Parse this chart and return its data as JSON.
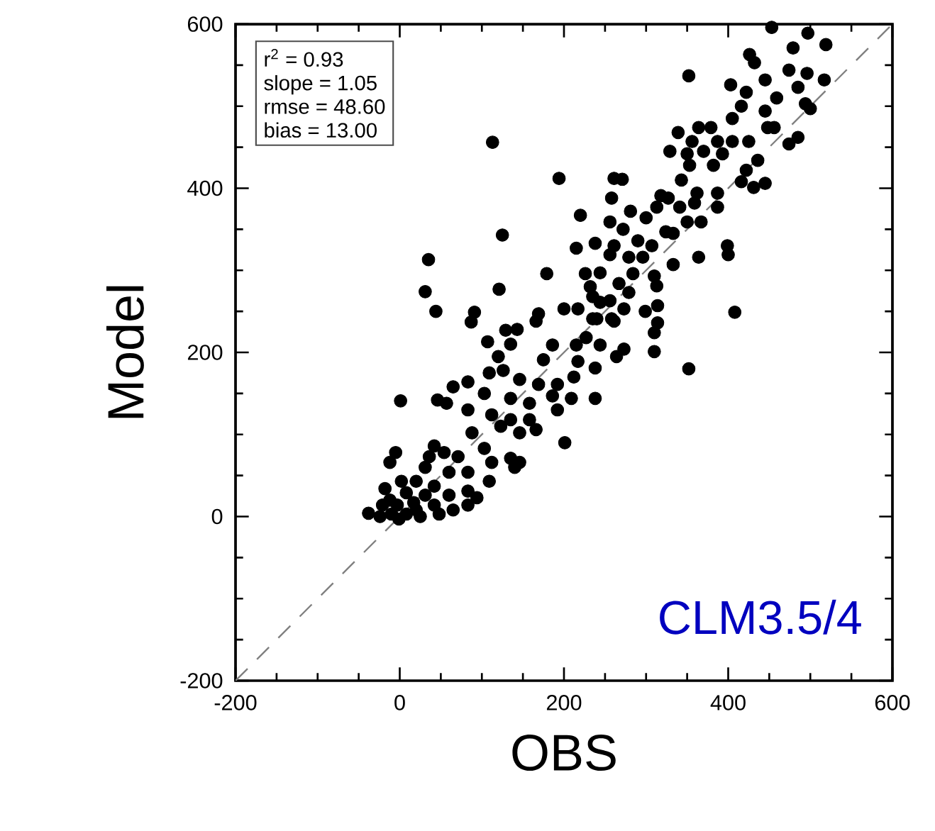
{
  "chart_data": {
    "type": "scatter",
    "xlabel": "OBS",
    "ylabel": "Model",
    "xlim": [
      -200,
      600
    ],
    "ylim": [
      -200,
      600
    ],
    "xticks": [
      -200,
      0,
      200,
      400,
      600
    ],
    "yticks": [
      -200,
      0,
      200,
      400,
      600
    ],
    "grid": false,
    "annotations": [
      "r$^{2}$ = 0.93",
      "slope =  1.05",
      "rmse = 48.60",
      "bias = 13.00",
      "CLM3.5/4"
    ],
    "series": [
      {
        "marker": "circle",
        "color": "#000000",
        "x": [
          453,
          497,
          519,
          426,
          479,
          432,
          474,
          496,
          352,
          403,
          445,
          517,
          485,
          422,
          459,
          494,
          416,
          445,
          500,
          405,
          485,
          474,
          339,
          364,
          379,
          448,
          456,
          356,
          387,
          405,
          425,
          329,
          350,
          370,
          393,
          436,
          353,
          382,
          422,
          343,
          416,
          431,
          445,
          113,
          194,
          261,
          271,
          258,
          318,
          327,
          362,
          387,
          281,
          313,
          341,
          359,
          387,
          220,
          256,
          300,
          350,
          367,
          272,
          324,
          290,
          307,
          333,
          238,
          261,
          215,
          256,
          279,
          296,
          333,
          364,
          399,
          400,
          125,
          35,
          31,
          121,
          179,
          226,
          244,
          284,
          310,
          232,
          267,
          313,
          235,
          279,
          44,
          169,
          200,
          217,
          256,
          273,
          299,
          408,
          240,
          258,
          91,
          87,
          166,
          244,
          314,
          314,
          235,
          261,
          310,
          273,
          264,
          310,
          352,
          107,
          129,
          143,
          135,
          186,
          215,
          227,
          244,
          175,
          217,
          238,
          120,
          126,
          109,
          146,
          212,
          83,
          65,
          169,
          192,
          186,
          209,
          238,
          1,
          46,
          57,
          103,
          135,
          158,
          192,
          83,
          112,
          135,
          158,
          166,
          88,
          123,
          146,
          201,
          -5,
          -12,
          42,
          54,
          36,
          71,
          103,
          112,
          135,
          146,
          140,
          31,
          60,
          83,
          109,
          -18,
          2,
          20,
          42,
          8,
          31,
          60,
          83,
          94,
          -38,
          -21,
          -3,
          17,
          42,
          65,
          83,
          -24,
          -10,
          8,
          25,
          48,
          -12,
          20,
          -1
        ],
        "values": [
          596,
          589,
          575,
          563,
          571,
          553,
          544,
          540,
          537,
          526,
          532,
          532,
          523,
          517,
          510,
          503,
          500,
          494,
          497,
          485,
          462,
          454,
          468,
          474,
          474,
          474,
          474,
          457,
          457,
          457,
          457,
          445,
          442,
          445,
          442,
          434,
          428,
          428,
          422,
          410,
          408,
          401,
          406,
          456,
          412,
          412,
          411,
          388,
          391,
          388,
          394,
          394,
          372,
          377,
          377,
          382,
          377,
          367,
          359,
          364,
          359,
          359,
          350,
          347,
          336,
          330,
          345,
          333,
          330,
          327,
          319,
          316,
          316,
          307,
          316,
          330,
          319,
          343,
          313,
          274,
          277,
          296,
          296,
          297,
          296,
          293,
          280,
          284,
          281,
          268,
          273,
          250,
          247,
          253,
          253,
          263,
          253,
          250,
          249,
          241,
          241,
          249,
          237,
          238,
          261,
          257,
          236,
          241,
          238,
          224,
          204,
          195,
          201,
          180,
          213,
          227,
          228,
          210,
          209,
          209,
          218,
          209,
          191,
          189,
          181,
          195,
          178,
          175,
          167,
          170,
          164,
          158,
          161,
          161,
          147,
          144,
          144,
          141,
          142,
          138,
          150,
          144,
          138,
          130,
          130,
          124,
          118,
          118,
          106,
          102,
          110,
          102,
          90,
          78,
          66,
          86,
          78,
          73,
          73,
          83,
          66,
          71,
          66,
          60,
          60,
          54,
          54,
          43,
          34,
          43,
          43,
          37,
          29,
          26,
          26,
          31,
          23,
          4,
          14,
          14,
          17,
          14,
          8,
          14,
          0,
          3,
          3,
          0,
          3,
          20,
          8,
          -3
        ]
      },
      {
        "type": "line",
        "color": "#808080",
        "line_style": "dashed",
        "x": [
          -200,
          600
        ],
        "values": [
          -200,
          600
        ]
      }
    ]
  }
}
